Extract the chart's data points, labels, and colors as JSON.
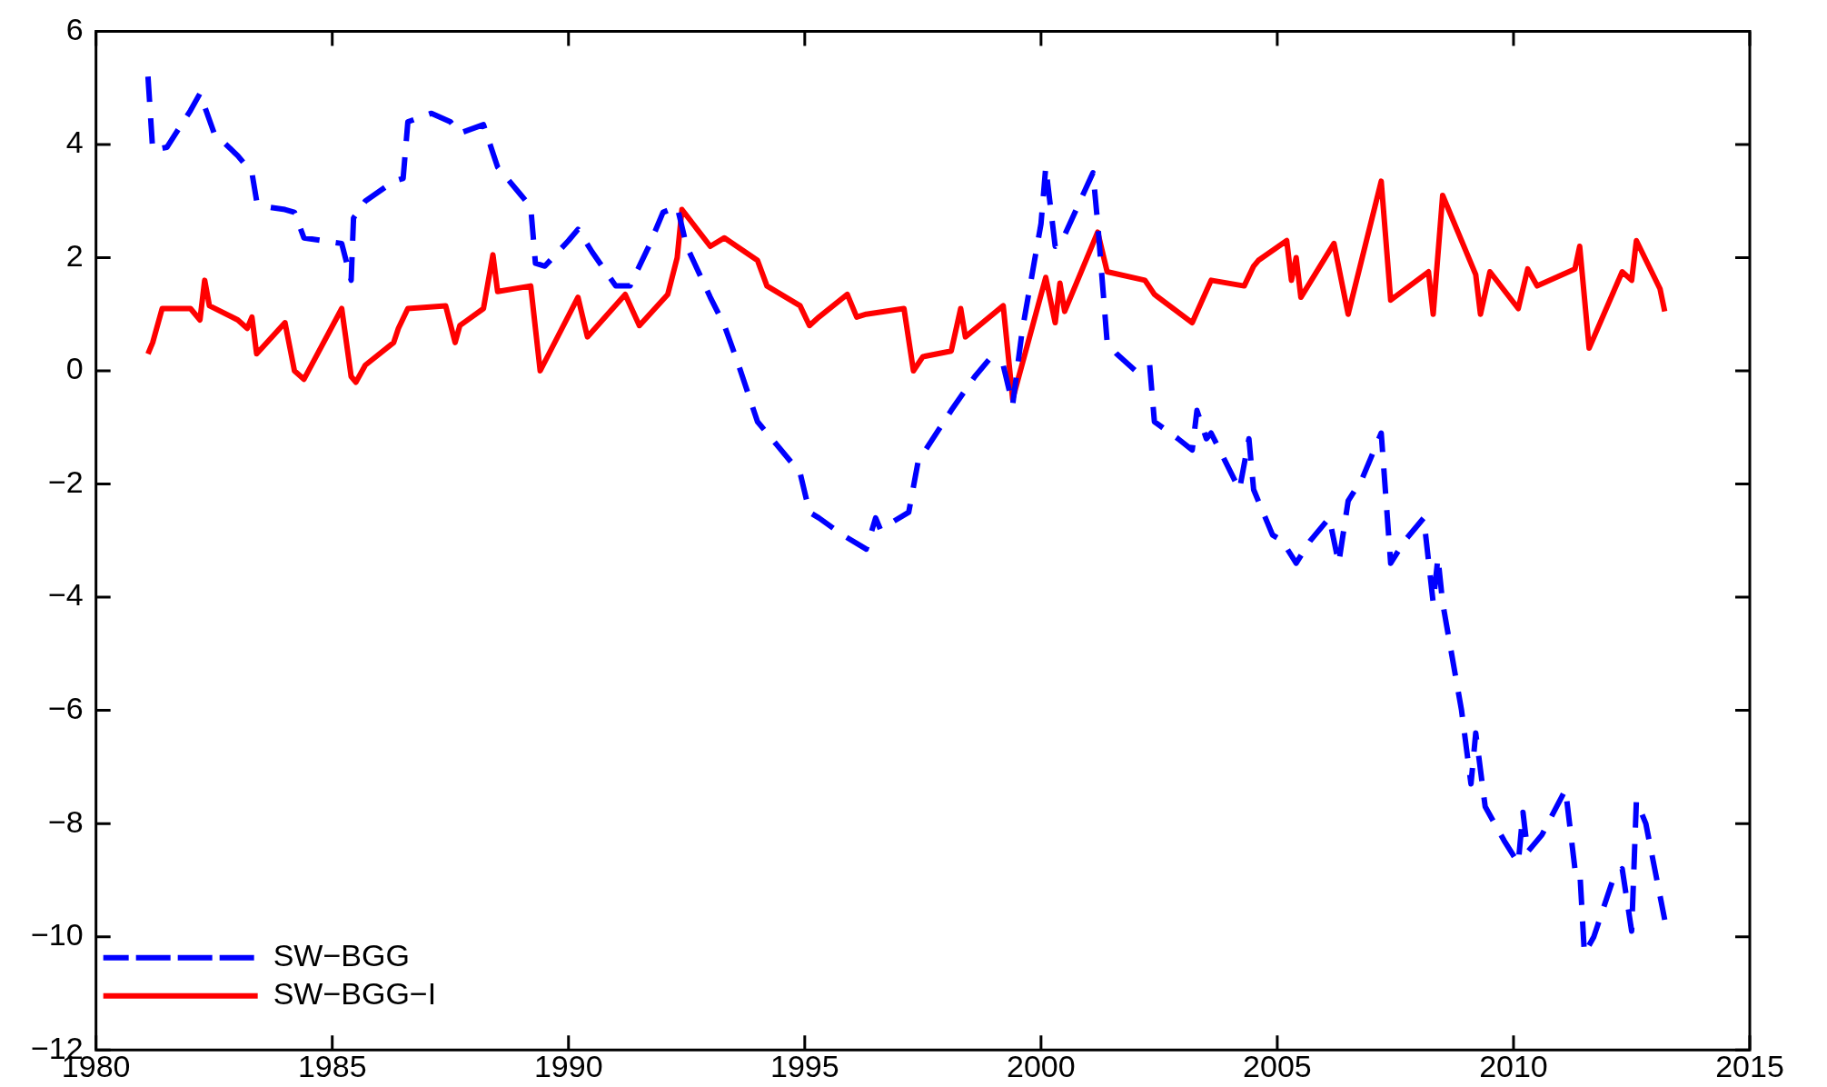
{
  "chart_data": {
    "type": "line",
    "xlim": [
      1980,
      2015
    ],
    "xticks": [
      1980,
      1985,
      1990,
      1995,
      2000,
      2005,
      2010,
      2015
    ],
    "ylim": [
      -12,
      6
    ],
    "yticks": [
      {
        "value": -12,
        "label": "−12"
      },
      {
        "value": -10,
        "label": "−10"
      },
      {
        "value": -8,
        "label": "−8"
      },
      {
        "value": -6,
        "label": "−6"
      },
      {
        "value": -4,
        "label": "−4"
      },
      {
        "value": -2,
        "label": "−2"
      },
      0,
      2,
      4,
      6
    ],
    "grid": false,
    "legend": "bottom left",
    "marker": "none",
    "series": [
      {
        "name": "SW−BGG",
        "color": "#0000ff",
        "line_style": "dashed",
        "x": [
          1981.1,
          1981.2,
          1981.5,
          1982.0,
          1982.2,
          1982.5,
          1983.0,
          1983.3,
          1983.4,
          1983.6,
          1984.0,
          1984.2,
          1984.4,
          1985.2,
          1985.4,
          1985.45,
          1985.7,
          1986.3,
          1986.5,
          1986.6,
          1987.1,
          1987.5,
          1987.7,
          1988.2,
          1988.5,
          1989.0,
          1989.2,
          1989.3,
          1989.5,
          1990.0,
          1990.2,
          1990.5,
          1991.0,
          1991.3,
          1991.7,
          1992.0,
          1992.3,
          1992.5,
          1993.0,
          1993.3,
          1993.6,
          1994.0,
          1994.2,
          1994.4,
          1994.9,
          1995.1,
          1995.3,
          1995.8,
          1996.3,
          1996.5,
          1996.6,
          1997.2,
          1997.4,
          1998.1,
          1998.6,
          1998.9,
          1999.2,
          1999.4,
          1999.6,
          2000.0,
          2000.1,
          2000.3,
          2000.5,
          2001.1,
          2001.2,
          2001.4,
          2001.6,
          2002.0,
          2002.3,
          2002.4,
          2002.9,
          2003.2,
          2003.3,
          2003.5,
          2003.6,
          2003.9,
          2004.2,
          2004.4,
          2004.5,
          2004.9,
          2005.1,
          2005.4,
          2005.7,
          2006.1,
          2006.3,
          2006.5,
          2006.8,
          2007.2,
          2007.4,
          2007.7,
          2008.1,
          2008.3,
          2008.4,
          2008.5,
          2008.9,
          2009.1,
          2009.2,
          2009.4,
          2009.8,
          2010.1,
          2010.2,
          2010.3,
          2010.6,
          2011.1,
          2011.3,
          2011.4,
          2011.5,
          2011.7,
          2012.1,
          2012.3,
          2012.5,
          2012.6,
          2012.8,
          2013.2
        ],
        "values": [
          5.2,
          3.9,
          3.95,
          4.6,
          4.9,
          4.2,
          3.8,
          3.5,
          3.0,
          2.9,
          2.85,
          2.8,
          2.35,
          2.25,
          1.6,
          2.7,
          3.0,
          3.35,
          3.4,
          4.4,
          4.55,
          4.4,
          4.2,
          4.35,
          3.6,
          3.1,
          2.9,
          1.9,
          1.85,
          2.3,
          2.5,
          2.1,
          1.5,
          1.5,
          2.2,
          2.8,
          2.9,
          2.2,
          1.3,
          0.8,
          0.1,
          -0.9,
          -1.1,
          -1.3,
          -1.8,
          -2.5,
          -2.6,
          -2.9,
          -3.15,
          -2.6,
          -2.8,
          -2.5,
          -1.6,
          -0.7,
          -0.1,
          0.2,
          0.1,
          -0.6,
          0.7,
          2.6,
          3.6,
          2.2,
          2.4,
          3.5,
          2.6,
          0.5,
          0.3,
          0.0,
          0.1,
          -0.9,
          -1.2,
          -1.4,
          -0.7,
          -1.2,
          -1.1,
          -1.6,
          -2.1,
          -1.2,
          -2.1,
          -2.9,
          -3.0,
          -3.4,
          -3.0,
          -2.6,
          -3.4,
          -2.3,
          -1.9,
          -1.1,
          -3.4,
          -3.0,
          -2.6,
          -4.1,
          -3.3,
          -4.1,
          -6.0,
          -7.3,
          -6.4,
          -7.7,
          -8.3,
          -8.7,
          -7.8,
          -8.5,
          -8.2,
          -7.4,
          -8.8,
          -8.8,
          -10.3,
          -10.0,
          -9.0,
          -8.8,
          -9.9,
          -7.6,
          -8.0,
          -9.7
        ]
      },
      {
        "name": "SW−BGG−I",
        "color": "#ff0000",
        "line_style": "solid",
        "x": [
          1981.1,
          1981.2,
          1981.4,
          1982.0,
          1982.2,
          1982.3,
          1982.4,
          1983.0,
          1983.2,
          1983.3,
          1983.4,
          1984.0,
          1984.2,
          1984.4,
          1985.2,
          1985.4,
          1985.5,
          1985.7,
          1986.3,
          1986.4,
          1986.6,
          1987.4,
          1987.6,
          1987.7,
          1988.2,
          1988.4,
          1988.5,
          1989.2,
          1989.4,
          1990.2,
          1990.4,
          1991.2,
          1991.5,
          1992.1,
          1992.3,
          1992.4,
          1993.0,
          1993.3,
          1994.0,
          1994.2,
          1994.9,
          1995.1,
          1995.3,
          1995.9,
          1996.1,
          1996.3,
          1997.1,
          1997.3,
          1997.5,
          1998.1,
          1998.3,
          1998.4,
          1999.2,
          1999.4,
          2000.1,
          2000.3,
          2000.4,
          2000.5,
          2001.2,
          2001.4,
          2002.2,
          2002.4,
          2003.2,
          2003.6,
          2004.3,
          2004.5,
          2004.6,
          2005.2,
          2005.3,
          2005.4,
          2005.5,
          2006.2,
          2006.5,
          2007.2,
          2007.4,
          2008.2,
          2008.3,
          2008.5,
          2009.2,
          2009.3,
          2009.5,
          2010.1,
          2010.3,
          2010.5,
          2011.3,
          2011.4,
          2011.6,
          2012.3,
          2012.5,
          2012.6,
          2013.1,
          2013.2
        ],
        "values": [
          0.3,
          0.5,
          1.1,
          1.1,
          0.9,
          1.6,
          1.15,
          0.9,
          0.75,
          0.95,
          0.3,
          0.85,
          0.0,
          -0.15,
          1.1,
          -0.1,
          -0.2,
          0.1,
          0.5,
          0.75,
          1.1,
          1.15,
          0.5,
          0.8,
          1.1,
          2.05,
          1.4,
          1.5,
          0.0,
          1.3,
          0.6,
          1.35,
          0.8,
          1.35,
          2.0,
          2.85,
          2.2,
          2.35,
          1.95,
          1.5,
          1.15,
          0.8,
          0.95,
          1.35,
          0.95,
          1.0,
          1.1,
          0.0,
          0.25,
          0.35,
          1.1,
          0.6,
          1.15,
          -0.5,
          1.65,
          0.85,
          1.55,
          1.05,
          2.45,
          1.75,
          1.6,
          1.35,
          0.85,
          1.6,
          1.5,
          1.85,
          1.95,
          2.3,
          1.6,
          2.0,
          1.3,
          2.25,
          1.0,
          3.35,
          1.25,
          1.75,
          1.0,
          3.1,
          1.7,
          1.0,
          1.75,
          1.1,
          1.8,
          1.5,
          1.8,
          2.2,
          0.4,
          1.75,
          1.6,
          2.3,
          1.45,
          1.05
        ]
      }
    ]
  }
}
